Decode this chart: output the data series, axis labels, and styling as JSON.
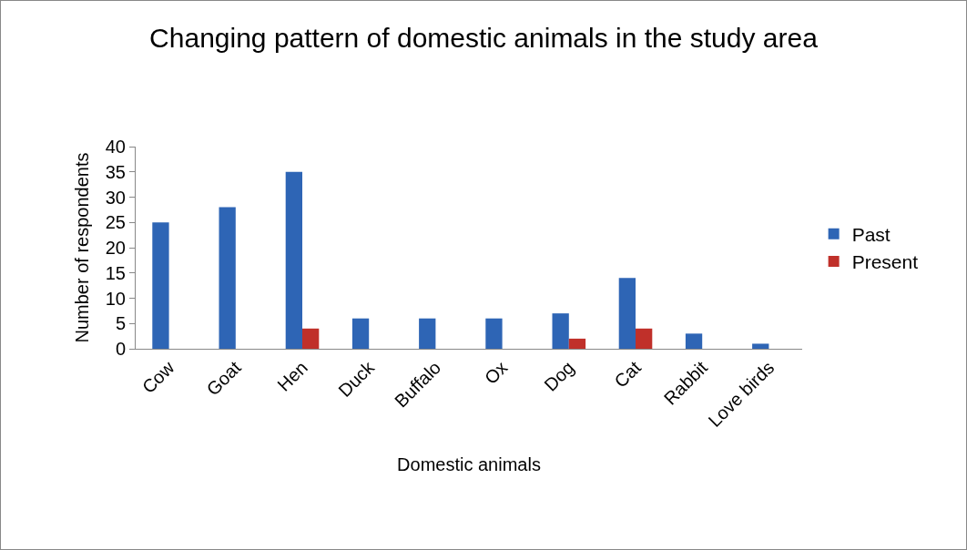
{
  "chart_data": {
    "type": "bar",
    "title": "Changing pattern of domestic animals in the study area",
    "xlabel": "Domestic animals",
    "ylabel": "Number of respondents",
    "categories": [
      "Cow",
      "Goat",
      "Hen",
      "Duck",
      "Buffalo",
      "Ox",
      "Dog",
      "Cat",
      "Rabbit",
      "Love birds"
    ],
    "series": [
      {
        "name": "Past",
        "color": "#2e65b5",
        "values": [
          25,
          28,
          35,
          6,
          6,
          6,
          7,
          14,
          3,
          1
        ]
      },
      {
        "name": "Present",
        "color": "#c0302a",
        "values": [
          null,
          null,
          4,
          null,
          null,
          null,
          2,
          4,
          null,
          null
        ]
      }
    ],
    "ylim": [
      0,
      40
    ],
    "yticks": [
      0,
      5,
      10,
      15,
      20,
      25,
      30,
      35,
      40
    ],
    "grid": false,
    "legend": "right"
  }
}
